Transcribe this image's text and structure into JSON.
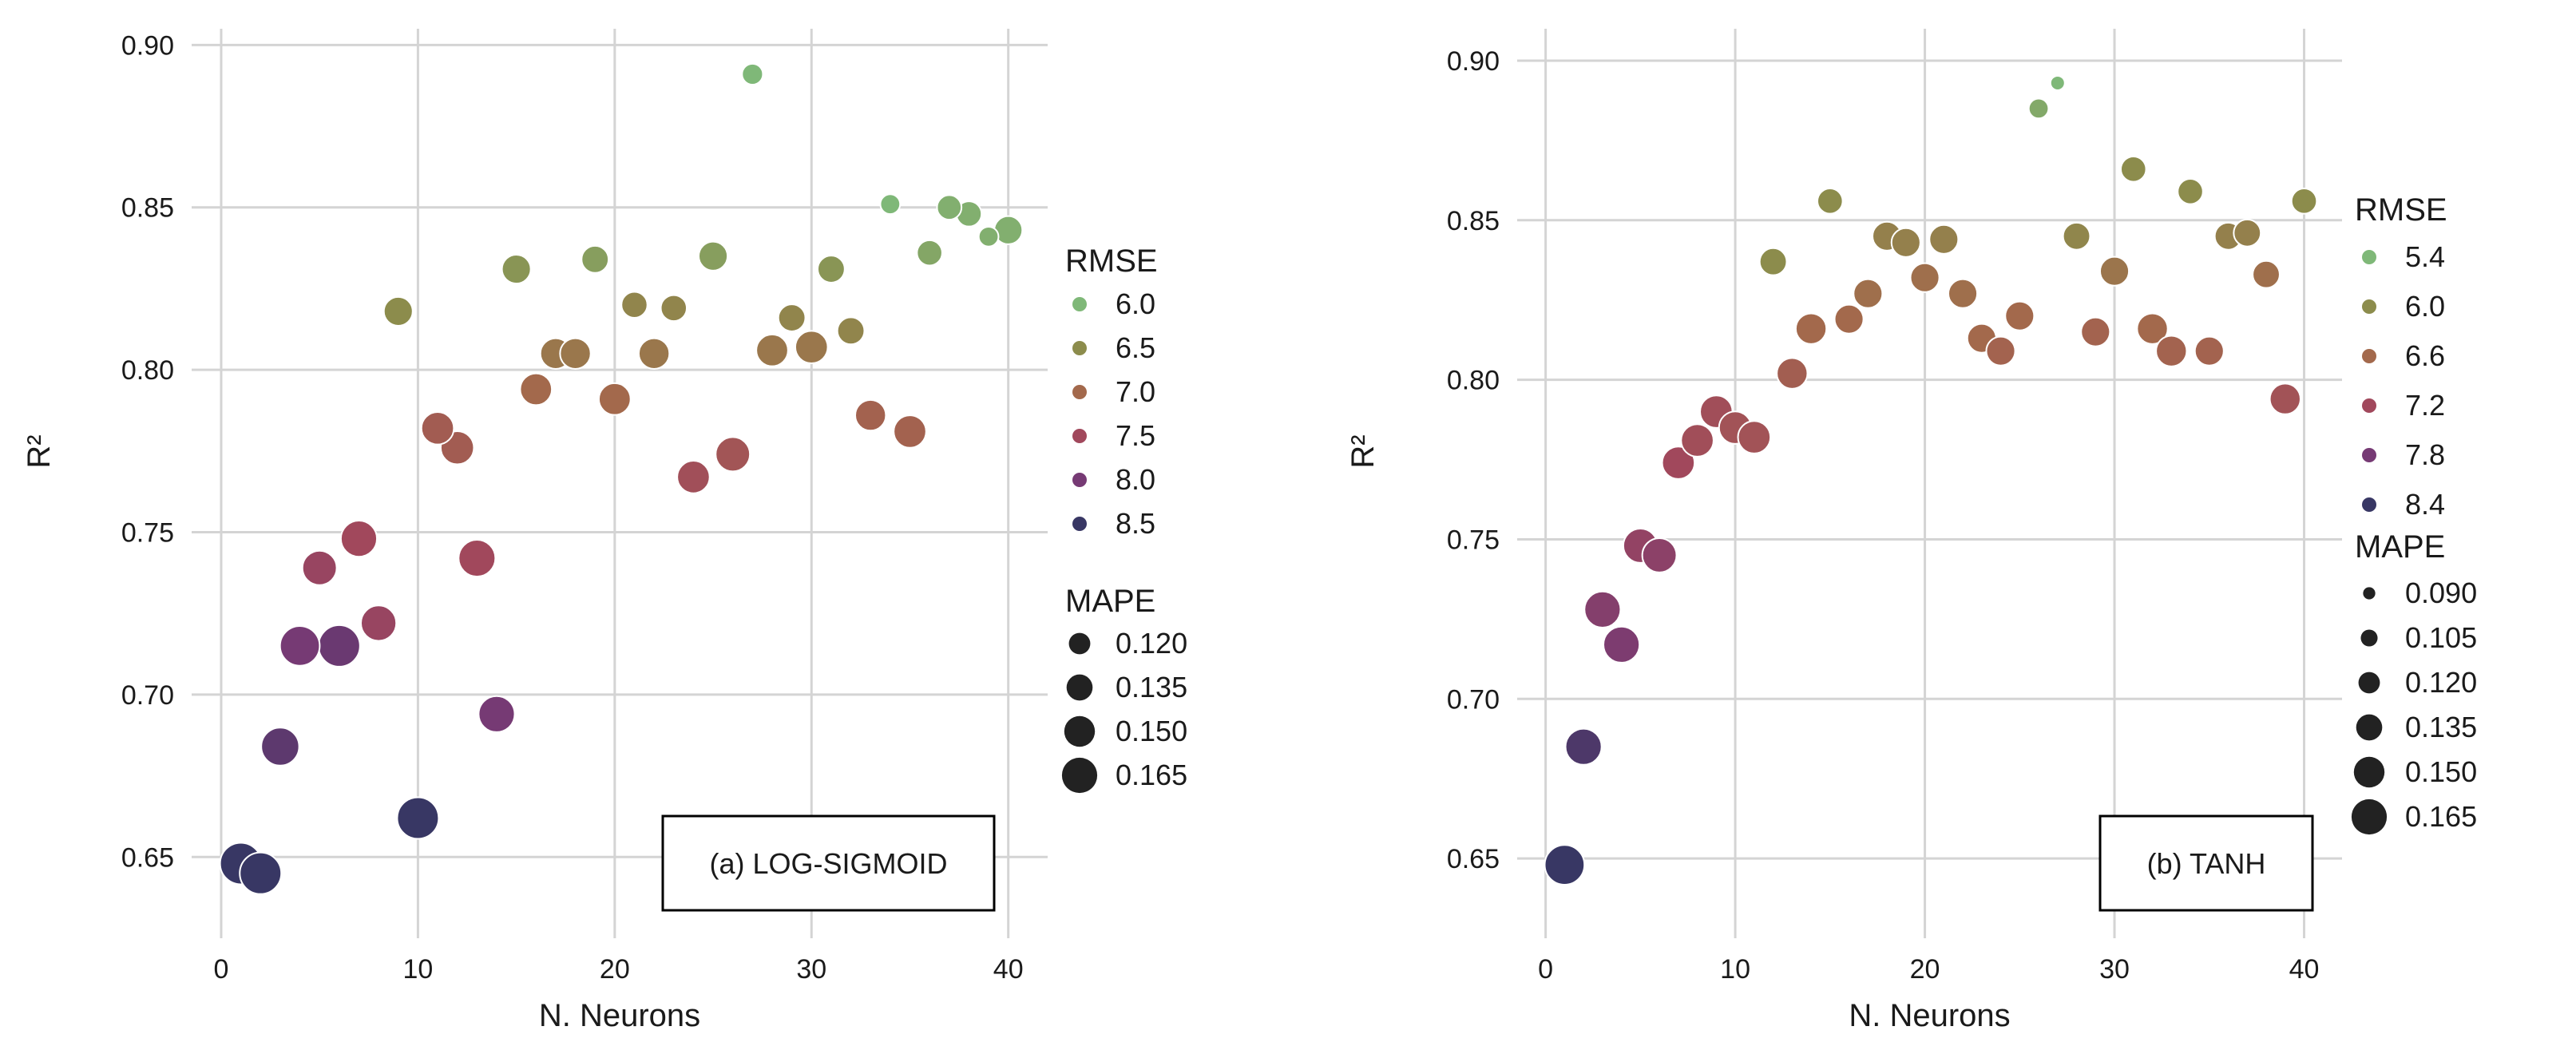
{
  "chart_data": [
    {
      "type": "scatter",
      "title": "",
      "annotation": "(a) LOG-SIGMOID",
      "xlabel": "N. Neurons",
      "ylabel": "R²",
      "xlim": [
        -1.5,
        42
      ],
      "ylim": [
        0.625,
        0.905
      ],
      "xticks": [
        0,
        10,
        20,
        30,
        40
      ],
      "yticks": [
        0.65,
        0.7,
        0.75,
        0.8,
        0.85,
        0.9
      ],
      "ytick_labels": [
        "0.65",
        "0.70",
        "0.75",
        "0.80",
        "0.85",
        "0.90"
      ],
      "grid": true,
      "legend_position": "right",
      "hue_legend": {
        "title": "RMSE",
        "entries": [
          {
            "label": "6.0",
            "value": 6.0,
            "color": "#7fb878"
          },
          {
            "label": "6.5",
            "value": 6.5,
            "color": "#8c8c4c"
          },
          {
            "label": "7.0",
            "value": 7.0,
            "color": "#a3694c"
          },
          {
            "label": "7.5",
            "value": 7.5,
            "color": "#a1485c"
          },
          {
            "label": "8.0",
            "value": 8.0,
            "color": "#763a74"
          },
          {
            "label": "8.5",
            "value": 8.5,
            "color": "#383764"
          }
        ]
      },
      "size_legend": {
        "title": "MAPE",
        "entries": [
          {
            "label": "0.120",
            "value": 0.12
          },
          {
            "label": "0.135",
            "value": 0.135
          },
          {
            "label": "0.150",
            "value": 0.15
          },
          {
            "label": "0.165",
            "value": 0.165
          }
        ]
      },
      "x": [
        1,
        2,
        3,
        4,
        5,
        6,
        7,
        8,
        9,
        10,
        11,
        12,
        13,
        14,
        15,
        16,
        17,
        18,
        19,
        20,
        21,
        22,
        23,
        24,
        25,
        26,
        27,
        28,
        29,
        30,
        31,
        32,
        33,
        34,
        35,
        36,
        37,
        38,
        39,
        40
      ],
      "y": [
        0.648,
        0.645,
        0.684,
        0.715,
        0.739,
        0.715,
        0.748,
        0.722,
        0.818,
        0.662,
        0.782,
        0.776,
        0.742,
        0.694,
        0.831,
        0.794,
        0.805,
        0.805,
        0.834,
        0.791,
        0.82,
        0.805,
        0.819,
        0.767,
        0.835,
        0.774,
        0.891,
        0.806,
        0.816,
        0.807,
        0.831,
        0.812,
        0.786,
        0.851,
        0.781,
        0.836,
        0.85,
        0.848,
        0.841,
        0.843
      ],
      "rmse": [
        8.5,
        8.5,
        8.2,
        8.0,
        7.6,
        8.1,
        7.5,
        7.6,
        6.5,
        8.5,
        7.2,
        7.2,
        7.5,
        8.0,
        6.4,
        7.0,
        6.8,
        6.8,
        6.3,
        7.0,
        6.6,
        6.8,
        6.6,
        7.4,
        6.3,
        7.3,
        6.0,
        6.8,
        6.6,
        6.8,
        6.4,
        6.6,
        7.1,
        6.0,
        7.1,
        6.2,
        6.1,
        6.1,
        6.1,
        6.1
      ],
      "mape": [
        0.165,
        0.165,
        0.155,
        0.16,
        0.145,
        0.165,
        0.15,
        0.148,
        0.13,
        0.165,
        0.14,
        0.142,
        0.152,
        0.15,
        0.13,
        0.138,
        0.135,
        0.135,
        0.125,
        0.138,
        0.122,
        0.135,
        0.122,
        0.14,
        0.13,
        0.145,
        0.108,
        0.138,
        0.125,
        0.14,
        0.125,
        0.125,
        0.135,
        0.105,
        0.14,
        0.12,
        0.118,
        0.12,
        0.105,
        0.128
      ]
    },
    {
      "type": "scatter",
      "title": "",
      "annotation": "(b) TANH",
      "xlabel": "N. Neurons",
      "ylabel": "R²",
      "xlim": [
        -1.5,
        42
      ],
      "ylim": [
        0.625,
        0.91
      ],
      "xticks": [
        0,
        10,
        20,
        30,
        40
      ],
      "yticks": [
        0.65,
        0.7,
        0.75,
        0.8,
        0.85,
        0.9
      ],
      "ytick_labels": [
        "0.65",
        "0.70",
        "0.75",
        "0.80",
        "0.85",
        "0.90"
      ],
      "grid": true,
      "legend_position": "right",
      "hue_legend": {
        "title": "RMSE",
        "entries": [
          {
            "label": "5.4",
            "value": 5.4,
            "color": "#7fb878"
          },
          {
            "label": "6.0",
            "value": 6.0,
            "color": "#8c8c4c"
          },
          {
            "label": "6.6",
            "value": 6.6,
            "color": "#a3694c"
          },
          {
            "label": "7.2",
            "value": 7.2,
            "color": "#a1485c"
          },
          {
            "label": "7.8",
            "value": 7.8,
            "color": "#763a74"
          },
          {
            "label": "8.4",
            "value": 8.4,
            "color": "#383764"
          }
        ]
      },
      "size_legend": {
        "title": "MAPE",
        "entries": [
          {
            "label": "0.090",
            "value": 0.09
          },
          {
            "label": "0.105",
            "value": 0.105
          },
          {
            "label": "0.120",
            "value": 0.12
          },
          {
            "label": "0.135",
            "value": 0.135
          },
          {
            "label": "0.150",
            "value": 0.15
          },
          {
            "label": "0.165",
            "value": 0.165
          }
        ]
      },
      "x": [
        1,
        2,
        3,
        4,
        5,
        6,
        7,
        8,
        9,
        10,
        11,
        12,
        13,
        14,
        15,
        16,
        17,
        18,
        19,
        20,
        21,
        22,
        23,
        24,
        25,
        26,
        27,
        28,
        29,
        30,
        31,
        32,
        33,
        34,
        35,
        36,
        37,
        38,
        39,
        40
      ],
      "y": [
        0.648,
        0.685,
        0.728,
        0.717,
        0.748,
        0.745,
        0.774,
        0.781,
        0.79,
        0.785,
        0.782,
        0.837,
        0.802,
        0.816,
        0.856,
        0.819,
        0.827,
        0.845,
        0.843,
        0.832,
        0.844,
        0.827,
        0.813,
        0.809,
        0.82,
        0.885,
        0.893,
        0.845,
        0.815,
        0.834,
        0.866,
        0.816,
        0.809,
        0.859,
        0.809,
        0.845,
        0.846,
        0.833,
        0.794,
        0.856
      ],
      "rmse": [
        8.4,
        8.2,
        7.6,
        7.7,
        7.4,
        7.5,
        7.2,
        7.1,
        7.1,
        7.0,
        7.0,
        6.0,
        6.8,
        6.6,
        6.0,
        6.6,
        6.5,
        6.2,
        6.2,
        6.5,
        6.2,
        6.5,
        6.6,
        6.7,
        6.6,
        5.6,
        5.4,
        6.1,
        6.7,
        6.4,
        6.0,
        6.6,
        6.7,
        6.0,
        6.7,
        6.2,
        6.2,
        6.5,
        7.0,
        6.0
      ],
      "mape": [
        0.16,
        0.15,
        0.15,
        0.15,
        0.145,
        0.145,
        0.14,
        0.14,
        0.14,
        0.14,
        0.14,
        0.125,
        0.135,
        0.135,
        0.12,
        0.13,
        0.13,
        0.13,
        0.13,
        0.13,
        0.13,
        0.13,
        0.13,
        0.13,
        0.13,
        0.105,
        0.09,
        0.125,
        0.13,
        0.13,
        0.12,
        0.135,
        0.135,
        0.12,
        0.13,
        0.125,
        0.125,
        0.125,
        0.135,
        0.12
      ]
    }
  ]
}
